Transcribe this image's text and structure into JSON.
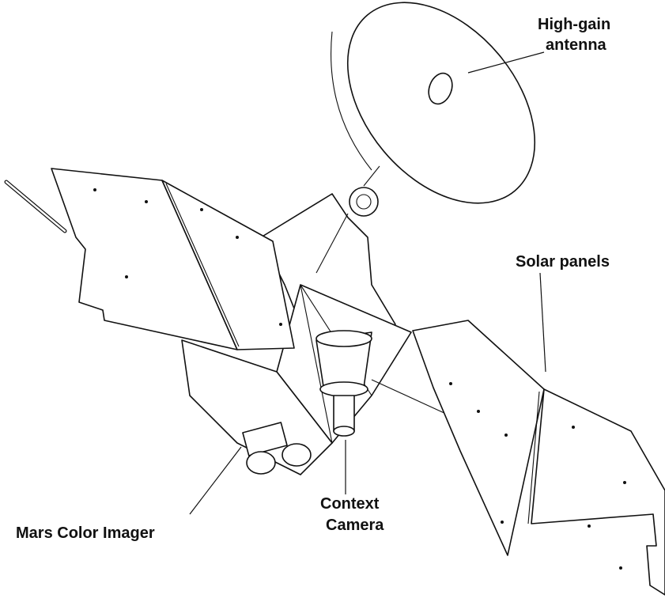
{
  "labels": [
    {
      "lines": [
        "High-gain",
        "antenna"
      ]
    },
    {
      "lines": [
        "Solar panels"
      ]
    },
    {
      "lines": [
        "Mars Color Imager"
      ]
    },
    {
      "lines": [
        "Context",
        "Camera"
      ]
    }
  ]
}
